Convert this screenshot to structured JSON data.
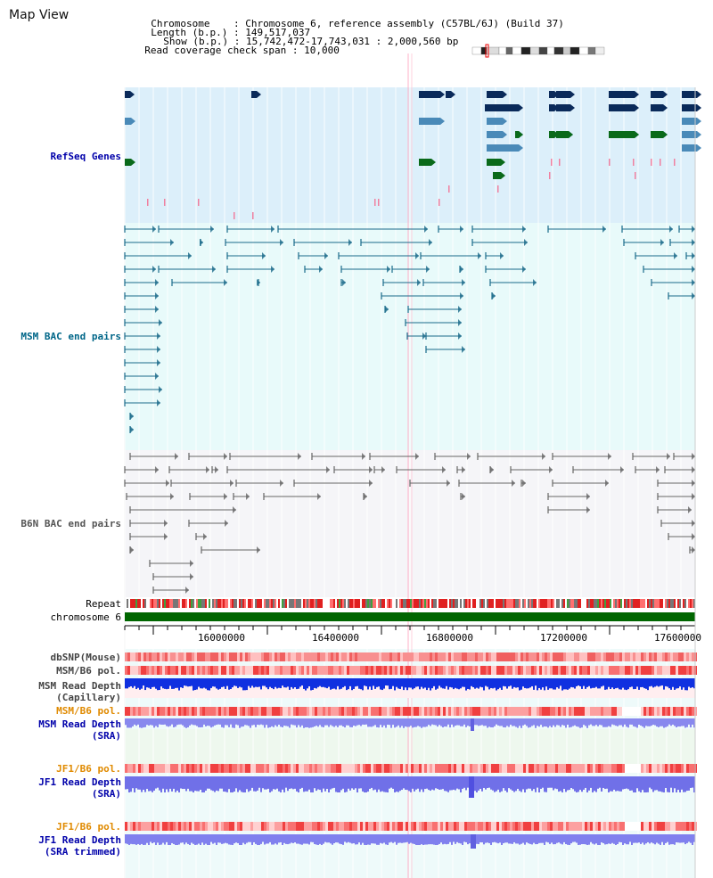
{
  "title": "Map View",
  "info": {
    "chromosome_label": "Chromosome",
    "chromosome_value": "Chromosome 6, reference assembly (C57BL/6J) (Build 37)",
    "length_label": "Length (b.p.)",
    "length_value": "149,517,037",
    "show_label": "Show (b.p.)",
    "show_value": "15,742,472-17,743,031 : 2,000,560 bp",
    "coverage_label": "Read coverage check span",
    "coverage_value": "10,000"
  },
  "tracks": {
    "refseq": "RefSeq Genes",
    "msm_bac": "MSM BAC end pairs",
    "b6n_bac": "B6N BAC end pairs",
    "repeat": "Repeat",
    "chromosome": "chromosome 6",
    "dbsnp": "dbSNP(Mouse)",
    "msm_b6_pol": "MSM/B6 pol.",
    "msm_depth_cap_1": "MSM Read Depth",
    "msm_depth_cap_2": "(Capillary)",
    "msm_b6_pol_sra": "MSM/B6 pol.",
    "msm_depth_sra_1": "MSM Read Depth",
    "msm_depth_sra_2": "(SRA)",
    "jf1_b6_pol": "JF1/B6 pol.",
    "jf1_depth_1": "JF1 Read Depth",
    "jf1_depth_2": "(SRA)",
    "jf1_b6_pol_trim": "JF1/B6 pol.",
    "jf1_depth_trim_1": "JF1 Read Depth",
    "jf1_depth_trim_2": "(SRA trimmed)"
  },
  "axis": {
    "ticks": [
      "16000000",
      "16400000",
      "16800000",
      "17200000",
      "17600000"
    ]
  },
  "colors": {
    "refseq_bg": "#dceffa",
    "msm_bg": "#e8fafa",
    "b6n_bg": "#f5f5f8",
    "refseq_label": "#0000aa",
    "msm_label": "#006688",
    "b6n_label": "#555555",
    "pol_label": "#e08a00",
    "depth_label": "#0000aa",
    "chrom_bar": "#006600"
  }
}
